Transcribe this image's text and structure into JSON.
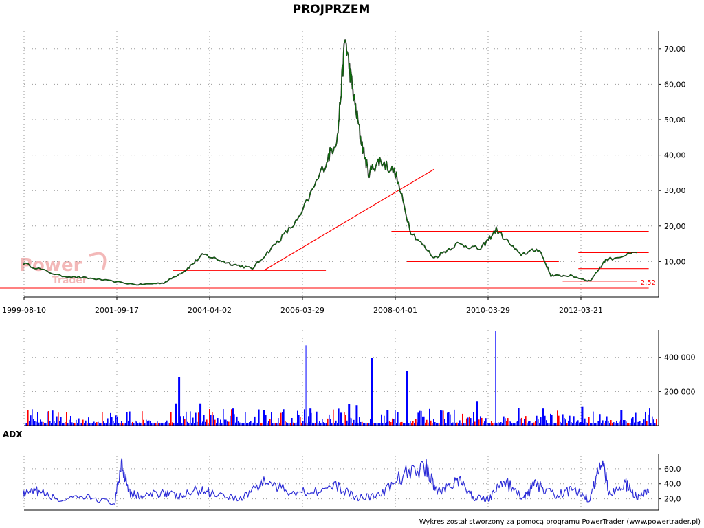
{
  "title": "PROJPRZEM",
  "footer": "Wykres został stworzony za pomocą programu PowerTrader (www.powertrader.pl)",
  "watermark": {
    "line1": "Power",
    "line2": "Trader"
  },
  "colors": {
    "price": "#0d6e0d",
    "price_dark": "#000000",
    "support": "#ff0000",
    "volume": "#0000ff",
    "volume_alt": "#ff0000",
    "adx": "#2b2bd6"
  },
  "chart_data": [
    {
      "type": "line",
      "title": "PROJPRZEM",
      "x_ticks": [
        "1999-08-10",
        "2001-09-17",
        "2004-04-02",
        "2006-03-29",
        "2008-04-01",
        "2010-03-29",
        "2012-03-21"
      ],
      "y_ticks": [
        "10,00",
        "20,00",
        "30,00",
        "40,00",
        "50,00",
        "60,00",
        "70,00"
      ],
      "ylim": [
        0,
        75
      ],
      "grid": true,
      "series": [
        {
          "x": [
            "1999-08",
            "2000-06",
            "2001-03",
            "2002-04",
            "2003-01",
            "2003-08",
            "2004-02",
            "2004-09",
            "2005-03",
            "2005-09",
            "2006-03",
            "2006-10",
            "2007-01",
            "2007-03",
            "2007-05",
            "2007-07",
            "2007-09",
            "2007-12",
            "2008-04",
            "2008-08",
            "2009-02",
            "2009-08",
            "2010-02",
            "2010-06",
            "2010-12",
            "2011-05",
            "2011-08",
            "2012-01",
            "2012-06",
            "2012-10",
            "2013-06"
          ],
          "y": [
            9.5,
            6.0,
            5.2,
            3.5,
            4.0,
            7.5,
            12.0,
            9.5,
            8.0,
            15.0,
            22.0,
            38.0,
            45.0,
            73.0,
            58.0,
            45.0,
            35.0,
            38.5,
            35.0,
            18.5,
            11.0,
            15.0,
            13.5,
            19.0,
            12.0,
            13.5,
            6.0,
            6.0,
            4.5,
            10.5,
            12.5
          ]
        }
      ],
      "annotations": [
        {
          "type": "trendline",
          "from": [
            "2005-06",
            7.5
          ],
          "to": [
            "2009-02",
            36
          ]
        },
        {
          "type": "hline",
          "value": 7.5,
          "from": "2003-04",
          "to": "2006-10"
        },
        {
          "type": "hline",
          "value": 18.5,
          "from": "2008-03",
          "to": "2013-09"
        },
        {
          "type": "hline",
          "value": 10.0,
          "from": "2008-07",
          "to": "2011-10"
        },
        {
          "type": "hline",
          "value": 4.5,
          "from": "2011-11",
          "to": "2013-06"
        },
        {
          "type": "hline",
          "value": 8.0,
          "from": "2012-03",
          "to": "2013-09"
        },
        {
          "type": "hline",
          "value": 12.5,
          "from": "2012-03",
          "to": "2013-09"
        },
        {
          "type": "hline",
          "value": 2.52,
          "from": "1999-06",
          "to": "2013-09",
          "label": "2,52"
        }
      ]
    },
    {
      "type": "bar",
      "y_ticks": [
        "200 000",
        "400 000"
      ],
      "ylim": [
        0,
        560000
      ],
      "grid": true,
      "series": [
        {
          "x": [
            "2003-05",
            "2003-06",
            "2004-01",
            "2004-10",
            "2005-06",
            "2006-06",
            "2006-05",
            "2007-02",
            "2007-04",
            "2007-06",
            "2007-10",
            "2008-02",
            "2008-07",
            "2008-10",
            "2010-01",
            "2010-06",
            "2011-06",
            "2012-04",
            "2013-02"
          ],
          "values": [
            130000,
            285000,
            130000,
            100000,
            90000,
            100000,
            470000,
            75000,
            125000,
            120000,
            395000,
            90000,
            320000,
            75000,
            140000,
            555000,
            100000,
            110000,
            90000
          ]
        }
      ]
    },
    {
      "type": "line",
      "title": "ADX",
      "y_ticks": [
        "20,0",
        "40,0",
        "60,0"
      ],
      "ylim": [
        5,
        80
      ],
      "grid": true,
      "series": [
        {
          "name": "ADX",
          "x": [
            "1999-08",
            "1999-12",
            "2000-06",
            "2001-02",
            "2001-09",
            "2001-11",
            "2002-02",
            "2002-06",
            "2003-01",
            "2003-06",
            "2003-12",
            "2004-05",
            "2004-12",
            "2005-06",
            "2005-12",
            "2006-06",
            "2007-01",
            "2007-06",
            "2007-12",
            "2008-06",
            "2008-12",
            "2009-03",
            "2009-08",
            "2009-12",
            "2010-04",
            "2010-08",
            "2011-01",
            "2011-04",
            "2011-09",
            "2012-02",
            "2012-06",
            "2012-09",
            "2012-11",
            "2013-03",
            "2013-06",
            "2013-09"
          ],
          "y": [
            25,
            30,
            18,
            22,
            14,
            68,
            28,
            22,
            30,
            22,
            32,
            28,
            20,
            44,
            30,
            30,
            36,
            22,
            24,
            52,
            62,
            28,
            46,
            22,
            20,
            44,
            20,
            40,
            24,
            32,
            18,
            75,
            26,
            40,
            22,
            28
          ]
        }
      ]
    }
  ]
}
